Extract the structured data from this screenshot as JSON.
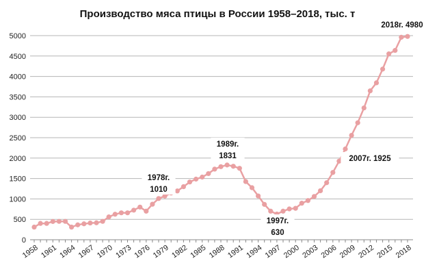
{
  "chart_data": {
    "type": "line",
    "title": "Производство мяса птицы в России 1958–2018, тыс. т",
    "xlabel": "",
    "ylabel": "",
    "ylim": [
      0,
      5000
    ],
    "yticks": [
      "0",
      "500",
      "1000",
      "1500",
      "2000",
      "2500",
      "3000",
      "3500",
      "4000",
      "4500",
      "5000"
    ],
    "xticks": [
      "1958",
      "1961",
      "1964",
      "1967",
      "1970",
      "1973",
      "1976",
      "1979",
      "1982",
      "1985",
      "1988",
      "1991",
      "1994",
      "1997",
      "2000",
      "2003",
      "2006",
      "2009",
      "2012",
      "2015",
      "2018"
    ],
    "grid": true,
    "line_color": "#e9a0a2",
    "x": [
      1958,
      1959,
      1960,
      1961,
      1962,
      1963,
      1964,
      1965,
      1966,
      1967,
      1968,
      1969,
      1970,
      1971,
      1972,
      1973,
      1974,
      1975,
      1976,
      1977,
      1978,
      1979,
      1980,
      1981,
      1982,
      1983,
      1984,
      1985,
      1986,
      1987,
      1988,
      1989,
      1990,
      1991,
      1992,
      1993,
      1994,
      1995,
      1996,
      1997,
      1998,
      1999,
      2000,
      2001,
      2002,
      2003,
      2004,
      2005,
      2006,
      2007,
      2008,
      2009,
      2010,
      2011,
      2012,
      2013,
      2014,
      2015,
      2016,
      2017,
      2018
    ],
    "values": [
      310,
      400,
      400,
      447,
      450,
      450,
      310,
      365,
      390,
      410,
      415,
      450,
      560,
      625,
      660,
      660,
      725,
      800,
      700,
      870,
      1010,
      1070,
      1145,
      1195,
      1300,
      1415,
      1485,
      1535,
      1620,
      1730,
      1790,
      1831,
      1800,
      1750,
      1425,
      1275,
      1073,
      866,
      700,
      630,
      700,
      755,
      770,
      895,
      960,
      1060,
      1200,
      1397,
      1648,
      1925,
      2223,
      2558,
      2866,
      3229,
      3648,
      3844,
      4180,
      4553,
      4637,
      4960,
      4980
    ],
    "annotations": [
      {
        "year": 1978,
        "lines": [
          "1978г.",
          "1010"
        ]
      },
      {
        "year": 1989,
        "lines": [
          "1989г.",
          "1831"
        ]
      },
      {
        "year": 1997,
        "lines": [
          "1997г.",
          "630"
        ]
      },
      {
        "year": 2007,
        "lines": [
          "2007г. 1925"
        ]
      },
      {
        "year": 2018,
        "lines": [
          "2018г. 4980"
        ]
      }
    ]
  }
}
